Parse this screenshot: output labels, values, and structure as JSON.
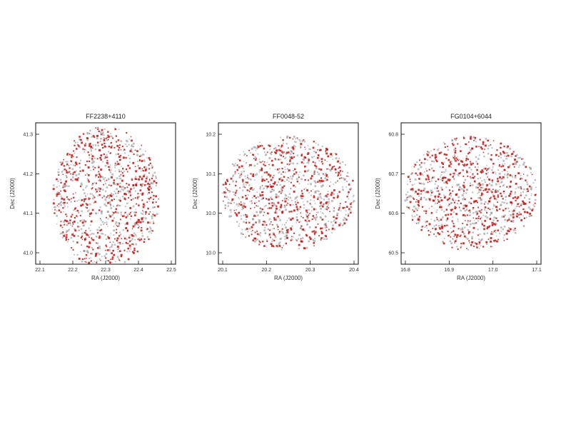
{
  "chart_data": [
    {
      "type": "scatter",
      "title": "FF2238+4110",
      "xlabel": "RA (J2000)",
      "ylabel": "Dec (J2000)",
      "x_ticks": [
        "22.1",
        "22.2",
        "22.3",
        "22.4",
        "22.5"
      ],
      "y_ticks": [
        "41.3",
        "41.2",
        "41.1",
        "41.0"
      ],
      "center": [
        22.3,
        41.15
      ],
      "radius": 0.19,
      "xlim": [
        22.05,
        22.55
      ],
      "ylim": [
        41.0,
        41.32
      ],
      "series": [
        {
          "color": "#cc1111",
          "count": 560,
          "seed": 11
        },
        {
          "color": "#888888",
          "count": 520,
          "seed": 23
        }
      ],
      "grid": false
    },
    {
      "type": "scatter",
      "title": "FF0048-52",
      "xlabel": "RA (J2000)",
      "ylabel": "Dec (J2000)",
      "x_ticks": [
        "20.1",
        "20.2",
        "20.3",
        "20.4"
      ],
      "y_ticks": [
        "10.2",
        "10.1",
        "10.0",
        "10.0"
      ],
      "center": [
        20.25,
        10.05
      ],
      "radius": 0.19,
      "xlim": [
        20.05,
        20.45
      ],
      "ylim": [
        9.85,
        10.25
      ],
      "series": [
        {
          "color": "#cc1111",
          "count": 500,
          "seed": 37
        },
        {
          "color": "#888888",
          "count": 560,
          "seed": 41
        }
      ],
      "grid": false
    },
    {
      "type": "scatter",
      "title": "FG0104+6044",
      "xlabel": "RA (J2000)",
      "ylabel": "Dec (J2000)",
      "x_ticks": [
        "16.8",
        "16.9",
        "17.0",
        "17.1"
      ],
      "y_ticks": [
        "60.8",
        "60.7",
        "60.6",
        "60.5"
      ],
      "center": [
        16.95,
        60.65
      ],
      "radius": 0.19,
      "xlim": [
        16.75,
        17.15
      ],
      "ylim": [
        60.45,
        60.85
      ],
      "series": [
        {
          "color": "#cc1111",
          "count": 560,
          "seed": 53
        },
        {
          "color": "#888888",
          "count": 520,
          "seed": 67
        }
      ],
      "grid": false
    }
  ]
}
